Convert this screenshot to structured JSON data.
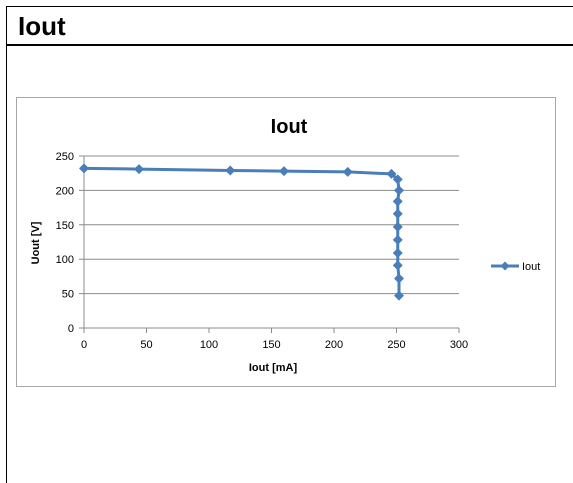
{
  "header": {
    "title": "Iout"
  },
  "chart_data": {
    "type": "line",
    "title": "Iout",
    "xlabel": "Iout [mA]",
    "ylabel": "Uout [V]",
    "xlim": [
      0,
      300
    ],
    "ylim": [
      0,
      250
    ],
    "x_ticks": [
      0,
      50,
      100,
      150,
      200,
      250,
      300
    ],
    "y_ticks": [
      0,
      50,
      100,
      150,
      200,
      250
    ],
    "grid": "horizontal",
    "legend_position": "right",
    "series": [
      {
        "name": "Iout",
        "color": "#4A7EBB",
        "marker": "diamond",
        "x": [
          0,
          44,
          117,
          160,
          211,
          246,
          251,
          252,
          251,
          251,
          251,
          251,
          251,
          251,
          252,
          252
        ],
        "y": [
          232,
          231,
          229,
          228,
          227,
          224,
          216,
          200,
          184,
          166,
          147,
          128,
          109,
          91,
          72,
          47
        ]
      }
    ]
  }
}
